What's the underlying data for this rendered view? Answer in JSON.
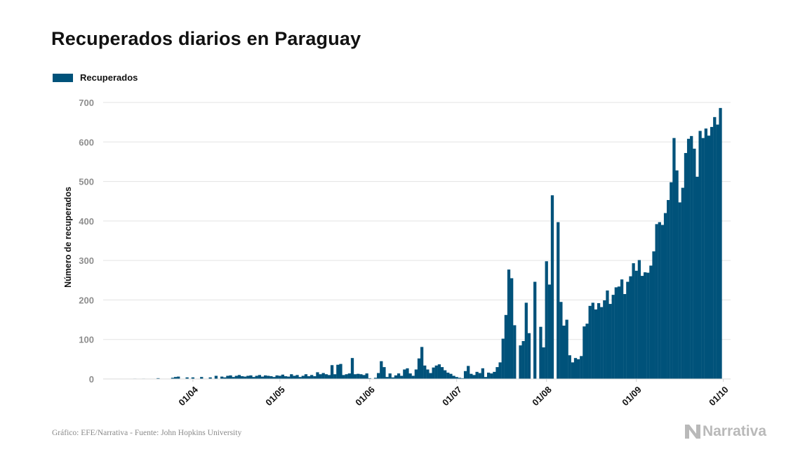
{
  "title": "Recuperados diarios en Paraguay",
  "source": "Gráfico: EFE/Narrativa - Fuente: John Hopkins University",
  "logo_text": "Narrativa",
  "colors": {
    "bar": "#00527a",
    "grid": "#e3e3e3",
    "tick": "#8e8e8e"
  },
  "chart_data": {
    "type": "bar",
    "ylabel": "Número de recuperados",
    "ylim": [
      0,
      700
    ],
    "yticks": [
      0,
      100,
      200,
      300,
      400,
      500,
      600,
      700
    ],
    "x_start": "2020-03-10",
    "x_end": "2020-10-01",
    "xticks": [
      {
        "date": "2020-04-01",
        "label": "01/04"
      },
      {
        "date": "2020-05-01",
        "label": "01/05"
      },
      {
        "date": "2020-06-01",
        "label": "01/06"
      },
      {
        "date": "2020-07-01",
        "label": "01/07"
      },
      {
        "date": "2020-08-01",
        "label": "01/08"
      },
      {
        "date": "2020-09-01",
        "label": "01/09"
      },
      {
        "date": "2020-10-01",
        "label": "01/10"
      }
    ],
    "series": [
      {
        "name": "Recuperados",
        "start_date": "2020-03-10",
        "values": [
          0,
          0,
          1,
          0,
          0,
          1,
          0,
          0,
          0,
          0,
          2,
          0,
          0,
          0,
          0,
          3,
          5,
          6,
          0,
          0,
          4,
          0,
          4,
          0,
          0,
          5,
          0,
          0,
          4,
          0,
          8,
          0,
          6,
          4,
          8,
          9,
          5,
          8,
          10,
          7,
          6,
          8,
          9,
          5,
          8,
          10,
          6,
          9,
          8,
          7,
          5,
          9,
          8,
          11,
          7,
          6,
          12,
          8,
          10,
          5,
          8,
          12,
          7,
          10,
          7,
          17,
          12,
          15,
          12,
          10,
          35,
          12,
          36,
          38,
          10,
          12,
          14,
          53,
          12,
          13,
          12,
          10,
          14,
          2,
          0,
          3,
          15,
          45,
          30,
          5,
          14,
          4,
          9,
          14,
          8,
          24,
          27,
          14,
          8,
          24,
          52,
          81,
          34,
          24,
          15,
          29,
          34,
          37,
          30,
          22,
          16,
          13,
          8,
          5,
          3,
          2,
          20,
          33,
          13,
          10,
          18,
          15,
          27,
          5,
          16,
          14,
          18,
          30,
          42,
          102,
          162,
          277,
          255,
          136,
          0,
          85,
          96,
          193,
          116,
          0,
          246,
          0,
          132,
          80,
          298,
          239,
          465,
          0,
          397,
          195,
          135,
          150,
          60,
          42,
          53,
          50,
          58,
          133,
          140,
          185,
          193,
          176,
          192,
          182,
          199,
          224,
          190,
          213,
          232,
          234,
          252,
          215,
          246,
          260,
          293,
          274,
          301,
          261,
          270,
          269,
          287,
          323,
          392,
          397,
          390,
          420,
          453,
          498,
          610,
          528,
          447,
          484,
          572,
          608,
          615,
          583,
          512,
          628,
          610,
          634,
          616,
          638,
          663,
          644,
          686
        ]
      }
    ]
  }
}
